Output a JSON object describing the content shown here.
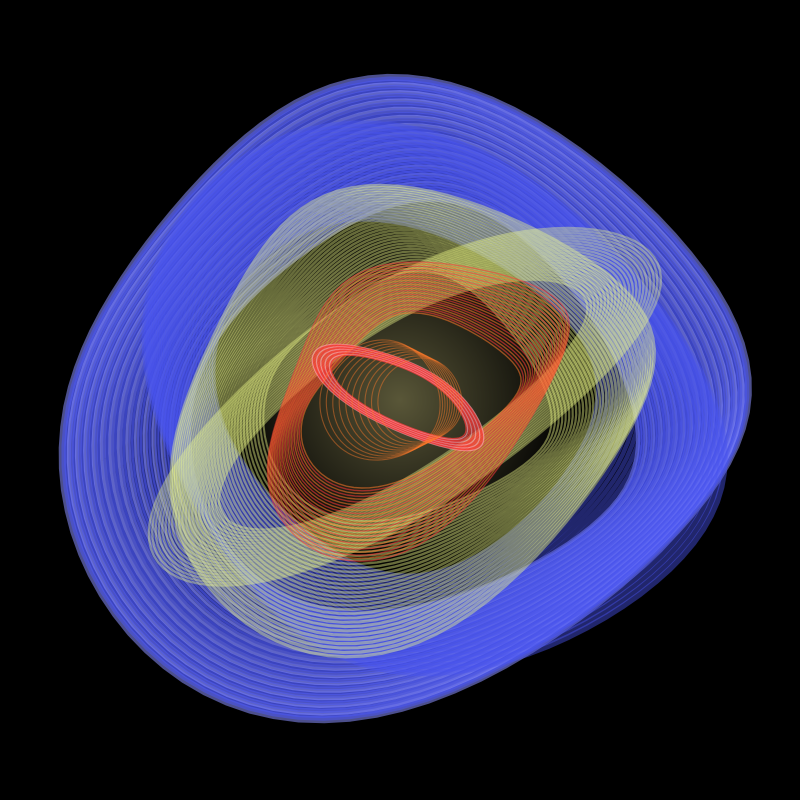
{
  "image": {
    "subject": "strange-attractor-render",
    "background_color": "#000000",
    "palette": {
      "outer_blue": "#4a55f0",
      "outer_blue_light": "#8a90ff",
      "mid_yellow": "#f2ff8a",
      "inner_orange": "#ff7a2a",
      "core_red": "#ff3a3a",
      "core_pink": "#ff9aa8"
    }
  }
}
